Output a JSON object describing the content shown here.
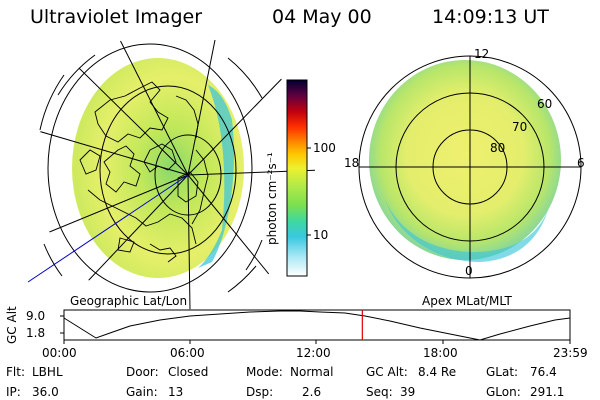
{
  "header": {
    "instrument": "Ultraviolet Imager",
    "date": "04 May 00",
    "time": "14:09:13 UT"
  },
  "panels": {
    "left_label": "Geographic Lat/Lon",
    "right_label": "Apex MLat/MLT"
  },
  "colorbar": {
    "unit_label": "photon cm⁻²s⁻¹",
    "tick_labels": [
      "100",
      "10"
    ],
    "colors": [
      "#000030",
      "#1a0050",
      "#4b0060",
      "#800020",
      "#c00000",
      "#ff2000",
      "#ff7000",
      "#ffb000",
      "#f4e000",
      "#d8f000",
      "#a6e85c",
      "#7ae050",
      "#40d8a0",
      "#38c8e0",
      "#90e0f0",
      "#ffffff"
    ]
  },
  "polar_grid": {
    "mlt_labels": [
      "12",
      "18",
      "6",
      "0"
    ],
    "mlat_labels": [
      "60",
      "70",
      "80"
    ]
  },
  "altitude_plot": {
    "axis_label": "GC Alt",
    "y_ticks": [
      "9.0",
      "1.8"
    ],
    "x_ticks": [
      "00:00",
      "06:00",
      "12:00",
      "18:00",
      "23:59"
    ],
    "marker_time_hours": 14.15
  },
  "info_rows": [
    [
      {
        "key": "Flt:",
        "value": "LBHL"
      },
      {
        "key": "Door:",
        "value": "Closed"
      },
      {
        "key": "Mode:",
        "value": "Normal"
      },
      {
        "key": "GC Alt:",
        "value": "8.4 Re"
      },
      {
        "key": "GLat:",
        "value": "76.4"
      }
    ],
    [
      {
        "key": "IP:",
        "value": "36.0"
      },
      {
        "key": "Gain:",
        "value": "13"
      },
      {
        "key": "Dsp:",
        "value": "2.6"
      },
      {
        "key": "Seq:",
        "value": "39"
      },
      {
        "key": "GLon:",
        "value": "291.1"
      }
    ]
  ],
  "colors": {
    "marker": "#e00000",
    "grid": "#000000",
    "background": "#ffffff"
  }
}
